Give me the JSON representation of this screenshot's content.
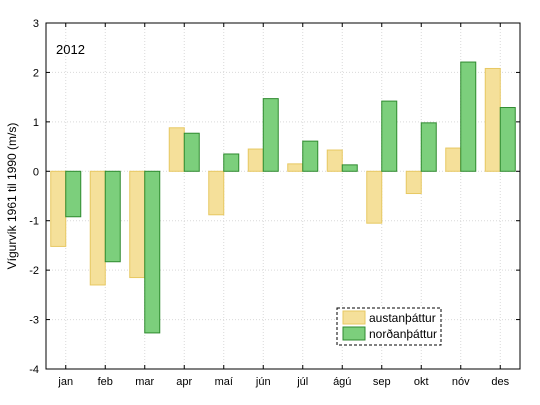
{
  "chart_data": {
    "type": "bar",
    "annotation": "2012",
    "xlabel": "",
    "ylabel": "Vígurvík 1961 til 1990 (m/s)",
    "ylim": [
      -4,
      3
    ],
    "yticks": [
      -4,
      -3,
      -2,
      -1,
      0,
      1,
      2,
      3
    ],
    "grid": true,
    "legend_position": "bottom-right",
    "categories": [
      "jan",
      "feb",
      "mar",
      "apr",
      "maí",
      "jún",
      "júl",
      "ágú",
      "sep",
      "okt",
      "nóv",
      "des"
    ],
    "series": [
      {
        "name": "austanþáttur",
        "color": "#f5e09a",
        "edge": "#e7c862",
        "values": [
          -1.52,
          -2.3,
          -2.15,
          0.88,
          -0.88,
          0.45,
          0.15,
          0.43,
          -1.05,
          -0.45,
          0.47,
          2.08
        ]
      },
      {
        "name": "norðanþáttur",
        "color": "#7ccf7c",
        "edge": "#2f8a2f",
        "values": [
          -0.92,
          -1.83,
          -3.27,
          0.77,
          0.35,
          1.47,
          0.61,
          0.13,
          1.42,
          0.98,
          2.21,
          1.29
        ]
      }
    ]
  }
}
